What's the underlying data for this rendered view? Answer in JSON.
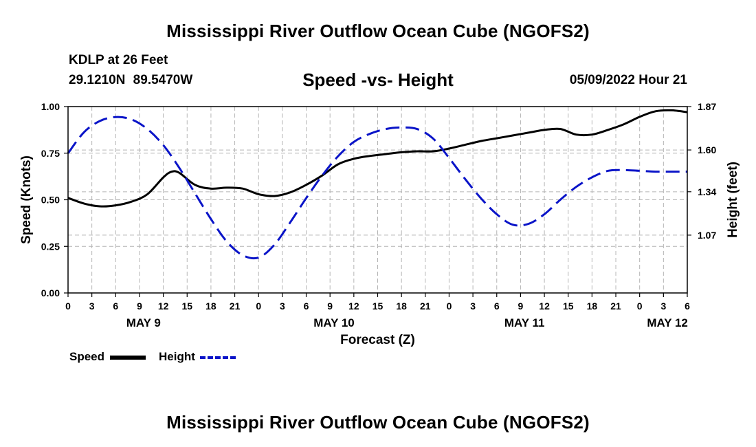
{
  "header": {
    "title": "Mississippi River Outflow Ocean Cube (NGOFS2)",
    "station": "KDLP at 26 Feet",
    "coordinates": "29.1210N 89.5470W",
    "subtitle": "Speed -vs- Height",
    "issued": "05/09/2022 Hour 21"
  },
  "footer": {
    "title": "Mississippi River Outflow Ocean Cube (NGOFS2)"
  },
  "legend": {
    "speed_label": "Speed",
    "height_label": "Height"
  },
  "colors": {
    "speed": "#000000",
    "height": "#0a14c8",
    "grid": "#b4b4b4"
  },
  "chart_data": {
    "type": "line",
    "title": "Speed -vs- Height",
    "xlabel": "Forecast (Z)",
    "ylabel": "Speed (Knots)",
    "y2label": "Height (feet)",
    "x_unit": "hours since May 9 00Z",
    "xlim": [
      0,
      78
    ],
    "ylim": [
      0,
      1.0
    ],
    "y2lim": [
      0.71,
      1.87
    ],
    "x_ticks": [
      0,
      3,
      6,
      9,
      12,
      15,
      18,
      21,
      24,
      27,
      30,
      33,
      36,
      39,
      42,
      45,
      48,
      51,
      54,
      57,
      60,
      63,
      66,
      69,
      72,
      75,
      78
    ],
    "x_tick_labels": [
      "0",
      "3",
      "6",
      "9",
      "12",
      "15",
      "18",
      "21",
      "0",
      "3",
      "6",
      "9",
      "12",
      "15",
      "18",
      "21",
      "0",
      "3",
      "6",
      "9",
      "12",
      "15",
      "18",
      "21",
      "0",
      "3",
      "6"
    ],
    "date_labels": [
      {
        "x": 9.5,
        "label": "MAY 9"
      },
      {
        "x": 33.5,
        "label": "MAY 10"
      },
      {
        "x": 57.5,
        "label": "MAY 11"
      },
      {
        "x": 75.5,
        "label": "MAY 12"
      }
    ],
    "y_ticks": [
      0,
      0.25,
      0.5,
      0.75,
      1.0
    ],
    "y_tick_labels": [
      "0.00",
      "0.25",
      "0.50",
      "0.75",
      "1.00"
    ],
    "y2_ticks": [
      1.07,
      1.34,
      1.6,
      1.87
    ],
    "y2_tick_labels": [
      "1.07",
      "1.34",
      "1.60",
      "1.87"
    ],
    "series": [
      {
        "name": "Speed",
        "axis": "left",
        "style": "solid",
        "x": [
          0,
          2,
          4,
          6,
          8,
          10,
          12,
          13,
          14,
          16,
          18,
          20,
          22,
          24,
          26,
          28,
          30,
          32,
          34,
          36,
          38,
          40,
          42,
          44,
          46,
          48,
          50,
          52,
          54,
          56,
          58,
          60,
          62,
          64,
          66,
          68,
          70,
          72,
          74,
          76,
          78
        ],
        "values": [
          0.51,
          0.48,
          0.465,
          0.47,
          0.49,
          0.53,
          0.62,
          0.65,
          0.645,
          0.58,
          0.56,
          0.565,
          0.56,
          0.53,
          0.52,
          0.54,
          0.58,
          0.63,
          0.69,
          0.72,
          0.735,
          0.745,
          0.755,
          0.76,
          0.76,
          0.775,
          0.795,
          0.815,
          0.83,
          0.845,
          0.86,
          0.875,
          0.88,
          0.85,
          0.85,
          0.875,
          0.905,
          0.945,
          0.975,
          0.98,
          0.97
        ]
      },
      {
        "name": "Height",
        "axis": "right",
        "style": "dashed",
        "x": [
          0,
          2,
          4,
          6,
          8,
          10,
          12,
          14,
          16,
          18,
          20,
          22,
          24,
          26,
          28,
          30,
          32,
          34,
          36,
          38,
          40,
          42,
          44,
          46,
          48,
          50,
          52,
          54,
          56,
          58,
          60,
          62,
          64,
          66,
          68,
          70,
          72,
          74,
          76,
          78
        ],
        "values": [
          1.58,
          1.71,
          1.78,
          1.805,
          1.79,
          1.73,
          1.63,
          1.49,
          1.33,
          1.17,
          1.03,
          0.945,
          0.93,
          1.01,
          1.15,
          1.3,
          1.44,
          1.56,
          1.65,
          1.7,
          1.73,
          1.74,
          1.73,
          1.67,
          1.55,
          1.42,
          1.3,
          1.2,
          1.135,
          1.14,
          1.2,
          1.29,
          1.37,
          1.43,
          1.47,
          1.475,
          1.47,
          1.465,
          1.465,
          1.465
        ]
      }
    ]
  }
}
